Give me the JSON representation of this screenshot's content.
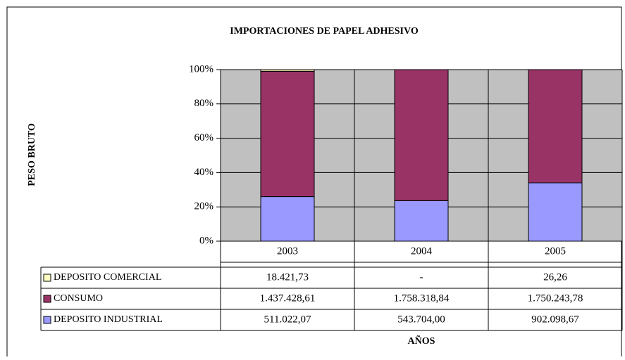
{
  "chart_data": {
    "type": "bar",
    "stacking": "percent",
    "title": "IMPORTACIONES DE PAPEL ADHESIVO",
    "y_label": "PESO BRUTO",
    "x_label": "AÑOS",
    "categories": [
      "2003",
      "2004",
      "2005"
    ],
    "series": [
      {
        "name": "DEPOSITO COMERCIAL",
        "color": "#ffffc0",
        "values": [
          18421.73,
          null,
          26.26
        ],
        "value_labels": [
          "18.421,73",
          "-",
          "26,26"
        ]
      },
      {
        "name": "CONSUMO",
        "color": "#993366",
        "values": [
          1437428.61,
          1758318.84,
          1750243.78
        ],
        "value_labels": [
          "1.437.428,61",
          "1.758.318,84",
          "1.750.243,78"
        ]
      },
      {
        "name": "DEPOSITO INDUSTRIAL",
        "color": "#9999ff",
        "values": [
          511022.07,
          543704.0,
          902098.67
        ],
        "value_labels": [
          "511.022,07",
          "543.704,00",
          "902.098,67"
        ]
      }
    ],
    "ylim": [
      0,
      100
    ],
    "yticks": [
      {
        "value": 0,
        "label": "0%"
      },
      {
        "value": 20,
        "label": "20%"
      },
      {
        "value": 40,
        "label": "40%"
      },
      {
        "value": 60,
        "label": "60%"
      },
      {
        "value": 80,
        "label": "80%"
      },
      {
        "value": 100,
        "label": "100%"
      }
    ],
    "grid": true,
    "plot_background": "#c0c0c0"
  }
}
